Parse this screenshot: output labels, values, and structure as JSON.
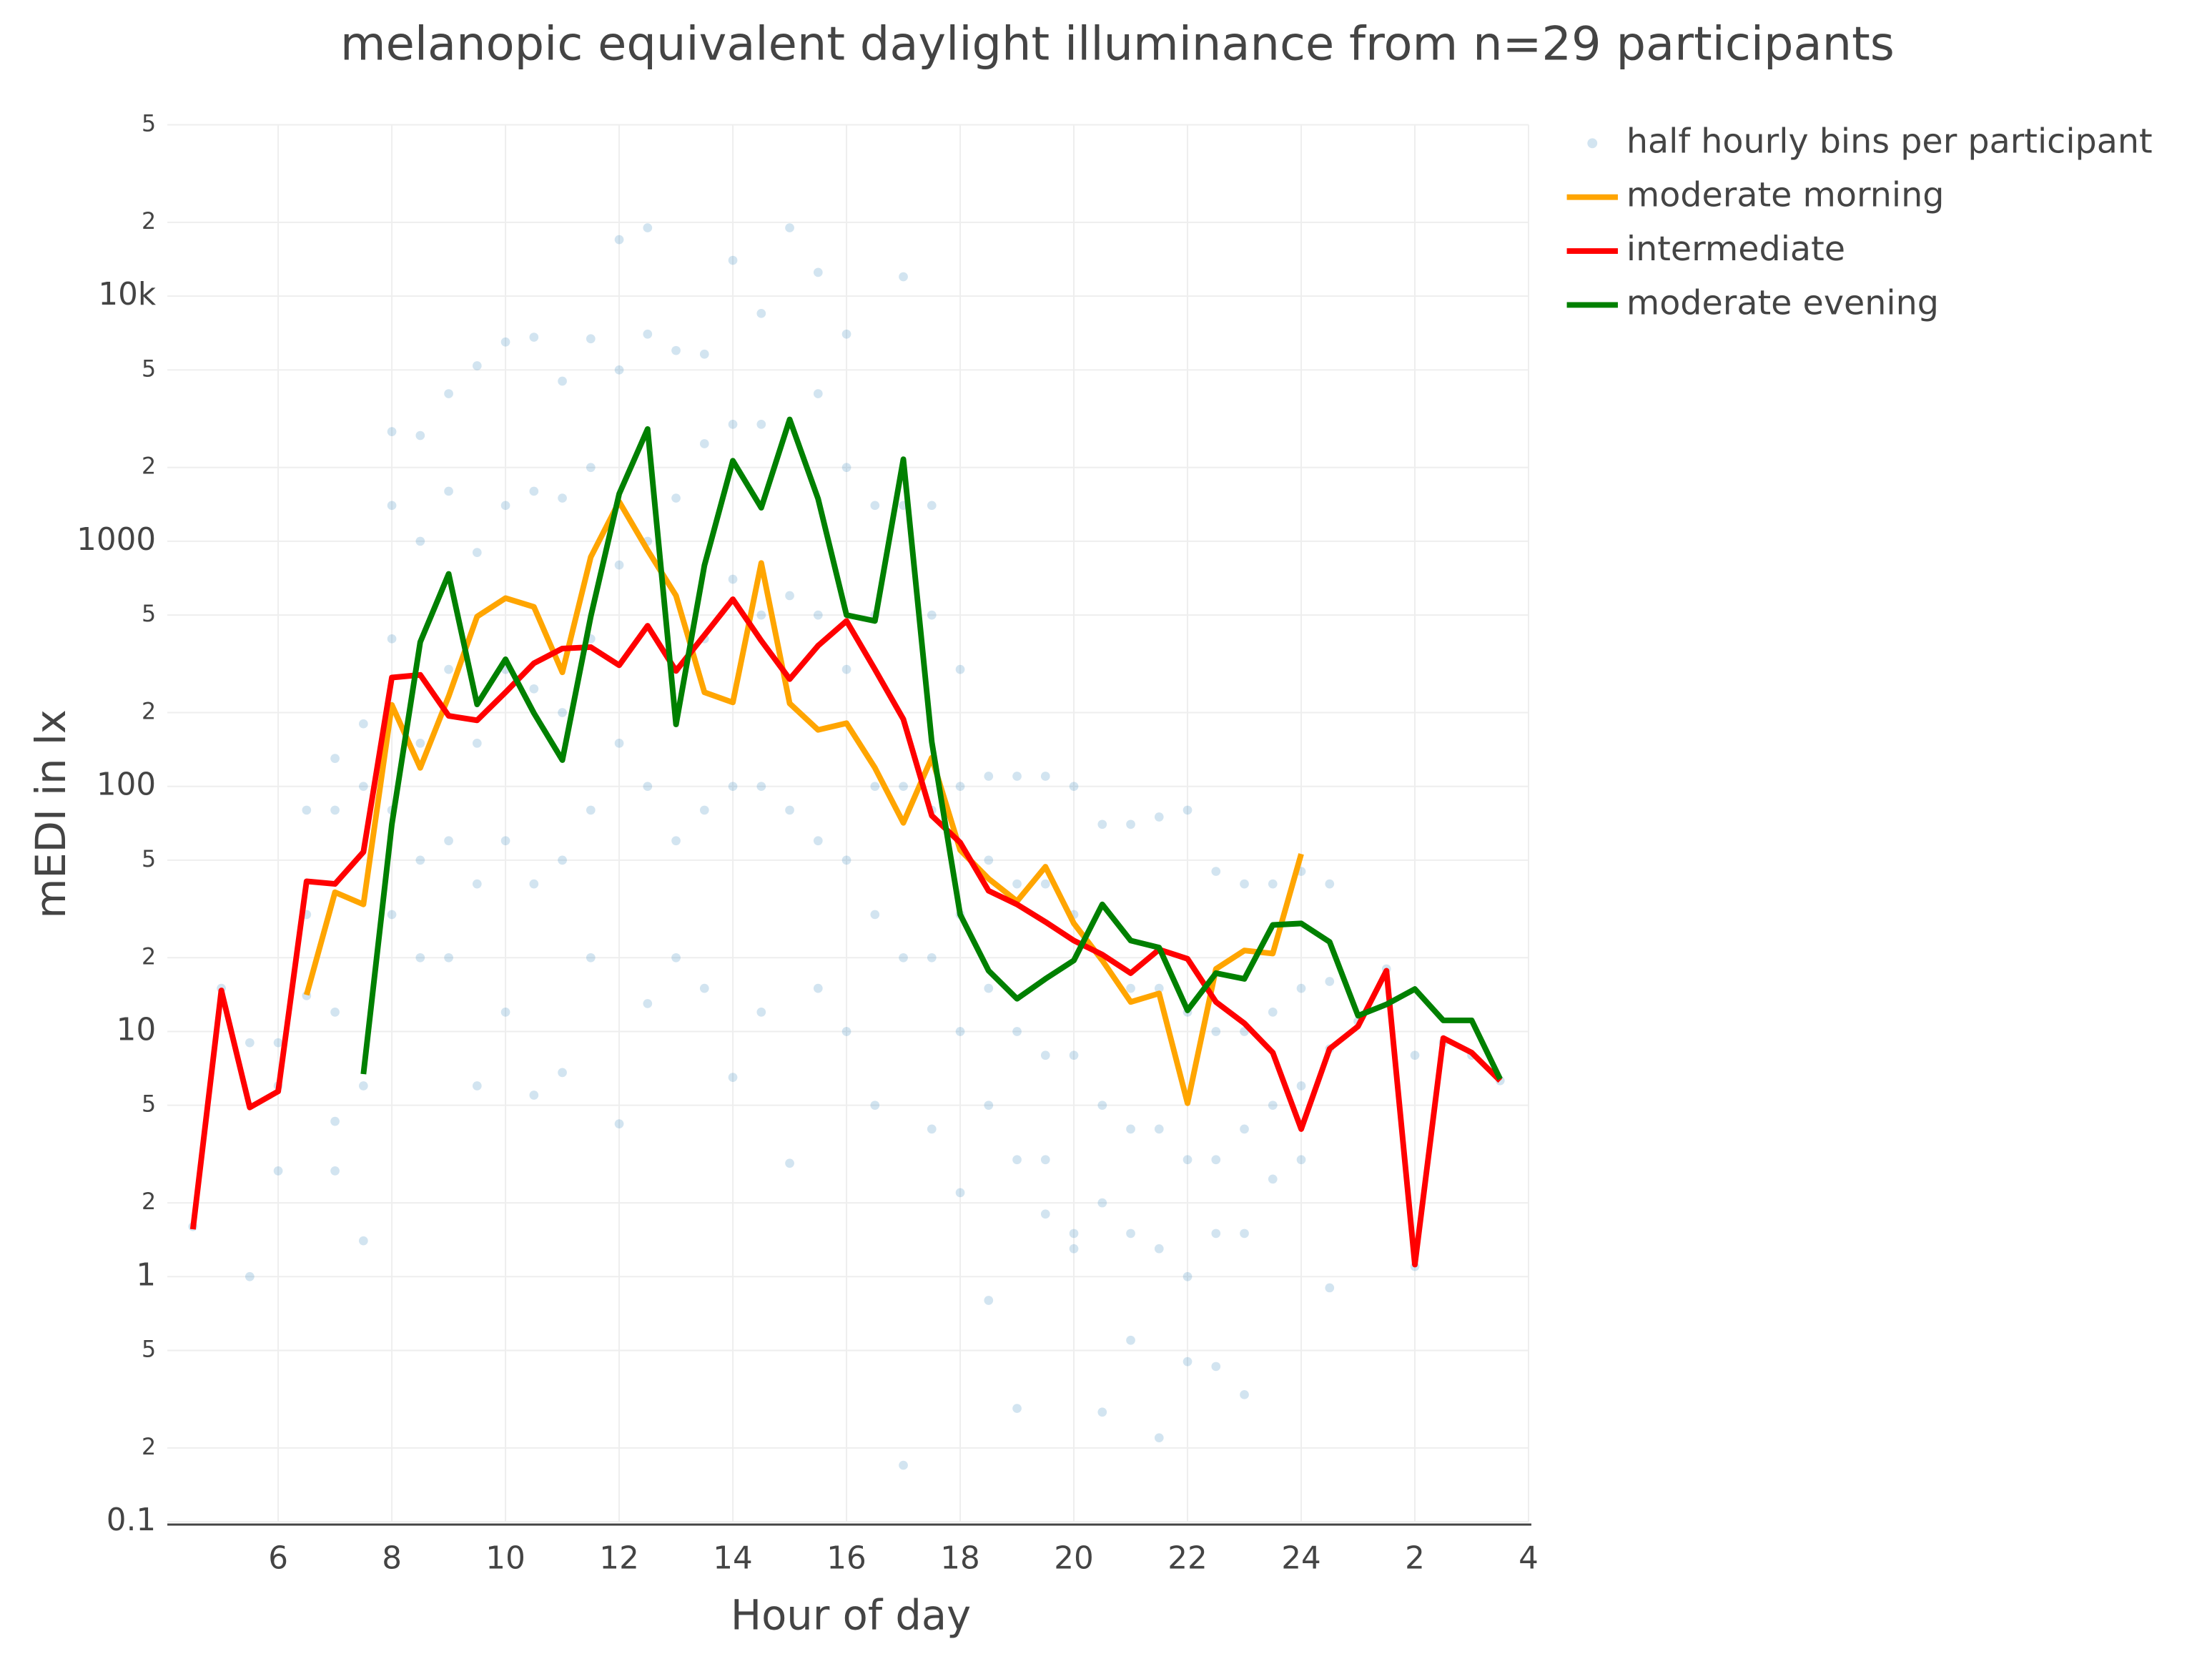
{
  "chart_data": {
    "type": "line",
    "title": "melanopic equivalent daylight illuminance from n=29 participants",
    "x_label": "Hour of day",
    "y_label": "mEDI in lx",
    "log_y": true,
    "grid": true,
    "legend": "top-right",
    "xlim": [
      4.05,
      28
    ],
    "ylim": [
      0.1,
      50000
    ],
    "xticks": [
      6,
      8,
      10,
      12,
      14,
      16,
      18,
      20,
      22,
      24,
      {
        "value": 26,
        "label": "2"
      },
      {
        "value": 28,
        "label": "4"
      }
    ],
    "yticks": [
      0.1,
      {
        "value": 0.2,
        "label": "2"
      },
      {
        "value": 0.5,
        "label": "5"
      },
      1,
      2,
      5,
      10,
      {
        "value": 20,
        "label": "2"
      },
      {
        "value": 50,
        "label": "5"
      },
      100,
      {
        "value": 200,
        "label": "2"
      },
      {
        "value": 500,
        "label": "5"
      },
      1000,
      {
        "value": 2000,
        "label": "2"
      },
      {
        "value": 5000,
        "label": "5"
      },
      {
        "value": 10000,
        "label": "10k"
      },
      {
        "value": 20000,
        "label": "2"
      },
      {
        "value": 50000,
        "label": "5"
      }
    ],
    "series": [
      {
        "name": "half hourly bins per participant",
        "mode": "markers",
        "color": "#1f77b4",
        "x": [
          4.5,
          5,
          5.5,
          5.5,
          6,
          6,
          6,
          6.5,
          6.5,
          6.5,
          7,
          7,
          7,
          7,
          7,
          7.5,
          7.5,
          7.5,
          7.5,
          8,
          8,
          8,
          8,
          8,
          8.5,
          8.5,
          8.5,
          8.5,
          8.5,
          9,
          9,
          9,
          9,
          9,
          9.5,
          9.5,
          9.5,
          9.5,
          9.5,
          10,
          10,
          10,
          10,
          10,
          10.5,
          10.5,
          10.5,
          10.5,
          10.5,
          11,
          11,
          11,
          11,
          11,
          11.5,
          11.5,
          11.5,
          11.5,
          11.5,
          12,
          12,
          12,
          12,
          12,
          12.5,
          12.5,
          12.5,
          12.5,
          12.5,
          13,
          13,
          13,
          13,
          13,
          13.5,
          13.5,
          13.5,
          13.5,
          13.5,
          14,
          14,
          14,
          14,
          14,
          14.5,
          14.5,
          14.5,
          14.5,
          14.5,
          15,
          15,
          15,
          15,
          15,
          15.5,
          15.5,
          15.5,
          15.5,
          15.5,
          16,
          16,
          16,
          16,
          16,
          16.5,
          16.5,
          16.5,
          16.5,
          16.5,
          17,
          17,
          17,
          17,
          17,
          17.5,
          17.5,
          17.5,
          17.5,
          17.5,
          18,
          18,
          18,
          18,
          18,
          18.5,
          18.5,
          18.5,
          18.5,
          18.5,
          19,
          19,
          19,
          19,
          19,
          19.5,
          19.5,
          19.5,
          19.5,
          19.5,
          20,
          20,
          20,
          20,
          20,
          20.5,
          20.5,
          20.5,
          20.5,
          20.5,
          21,
          21,
          21,
          21,
          21,
          21.5,
          21.5,
          21.5,
          21.5,
          21.5,
          22,
          22,
          22,
          22,
          22,
          22.5,
          22.5,
          22.5,
          22.5,
          22.5,
          23,
          23,
          23,
          23,
          23,
          23.5,
          23.5,
          23.5,
          23.5,
          24,
          24,
          24,
          24,
          24.5,
          24.5,
          24.5,
          24.5,
          25,
          25.5,
          26,
          26,
          26.5,
          27,
          27.5
        ],
        "values": [
          1.6,
          15,
          9,
          1,
          9,
          2.7,
          6,
          80,
          14,
          30,
          80,
          4.3,
          12,
          2.7,
          130,
          1.4,
          6,
          100,
          180,
          2800,
          1400,
          80,
          400,
          30,
          2700,
          1000,
          150,
          50,
          20,
          4000,
          1600,
          300,
          60,
          20,
          5200,
          900,
          150,
          40,
          6,
          6500,
          1400,
          300,
          60,
          12,
          6800,
          1600,
          250,
          40,
          5.5,
          4500,
          1500,
          200,
          50,
          6.8,
          6700,
          2000,
          400,
          80,
          20,
          17000,
          5000,
          800,
          150,
          4.2,
          19000,
          7000,
          1000,
          100,
          13,
          6000,
          1500,
          300,
          60,
          20,
          5800,
          2500,
          400,
          80,
          15,
          14000,
          3000,
          700,
          100,
          6.5,
          8500,
          3000,
          500,
          100,
          12,
          19000,
          3000,
          600,
          80,
          2.9,
          12500,
          4000,
          500,
          60,
          15,
          7000,
          2000,
          300,
          50,
          10,
          1400,
          500,
          100,
          30,
          5,
          12000,
          1400,
          100,
          20,
          0.17,
          1400,
          500,
          80,
          20,
          4,
          300,
          100,
          30,
          10,
          2.2,
          110,
          50,
          15,
          5,
          0.8,
          110,
          40,
          10,
          3,
          0.29,
          110,
          40,
          8,
          3,
          1.8,
          100,
          30,
          8,
          1.5,
          1.3,
          70,
          20,
          5,
          2,
          0.28,
          70,
          15,
          4,
          1.5,
          0.55,
          75,
          15,
          4,
          1.3,
          0.22,
          80,
          12,
          3,
          1,
          0.45,
          45,
          10,
          3,
          1.5,
          0.43,
          40,
          10,
          4,
          1.5,
          0.33,
          40,
          12,
          5,
          2.5,
          45,
          15,
          6,
          3,
          40,
          16,
          8.5,
          0.9,
          11,
          18,
          8,
          1.1,
          9,
          8,
          6.3
        ]
      },
      {
        "name": "moderate morning",
        "mode": "lines",
        "color": "#ffa500",
        "x": [
          6.5,
          7,
          7.5,
          8,
          8.5,
          9,
          9.5,
          10,
          10.5,
          11,
          11.5,
          12,
          12.5,
          13,
          13.5,
          14,
          14.5,
          15,
          15.5,
          16,
          16.5,
          17,
          17.5,
          18,
          18.5,
          19,
          19.5,
          20,
          20.5,
          21,
          21.5,
          22,
          22.5,
          23,
          23.5,
          24
        ],
        "values": [
          14.1,
          37,
          33,
          215,
          119,
          233,
          493,
          586,
          540,
          292,
          862,
          1450,
          920,
          600,
          242,
          220,
          815,
          218,
          170,
          181,
          119,
          71,
          131,
          55,
          42,
          34,
          47,
          27.6,
          19.5,
          13.2,
          14.3,
          5.1,
          18,
          21.4,
          20.8,
          53
        ]
      },
      {
        "name": "intermediate",
        "mode": "lines",
        "color": "#ff0000",
        "x": [
          4.5,
          5,
          5.5,
          6,
          6.5,
          7,
          7.5,
          8,
          8.5,
          9,
          9.5,
          10,
          10.5,
          11,
          11.5,
          12,
          12.5,
          13,
          13.5,
          14,
          14.5,
          15,
          15.5,
          16,
          16.5,
          17,
          17.5,
          18,
          18.5,
          19,
          19.5,
          20,
          20.5,
          21,
          21.5,
          22,
          22.5,
          23,
          23.5,
          24,
          24.5,
          25,
          25.5,
          26,
          26.5,
          27,
          27.5
        ],
        "values": [
          1.56,
          14.7,
          4.9,
          5.7,
          41,
          40,
          54,
          278,
          285,
          194,
          186,
          242,
          318,
          365,
          370,
          312,
          452,
          296,
          414,
          580,
          393,
          274,
          375,
          473,
          300,
          188,
          76,
          59,
          37.5,
          33,
          28,
          23.5,
          20.6,
          17.3,
          21.6,
          19.8,
          13.2,
          10.8,
          8.2,
          4,
          8.5,
          10.5,
          17.7,
          1.12,
          9.4,
          8.2,
          6.3
        ]
      },
      {
        "name": "moderate evening",
        "mode": "lines",
        "color": "#008000",
        "x": [
          7.5,
          8,
          8.5,
          9,
          9.5,
          10,
          10.5,
          11,
          11.5,
          12,
          12.5,
          13,
          13.5,
          14,
          14.5,
          15,
          15.5,
          16,
          16.5,
          17,
          17.5,
          18,
          18.5,
          19,
          19.5,
          20,
          20.5,
          21,
          21.5,
          22,
          22.5,
          23,
          23.5,
          24,
          24.5,
          25,
          25.5,
          26,
          26.5,
          27,
          27.5
        ],
        "values": [
          6.7,
          70,
          388,
          736,
          216,
          330,
          199,
          128,
          493,
          1560,
          2870,
          179,
          797,
          2130,
          1370,
          3140,
          1490,
          500,
          473,
          2160,
          152,
          30,
          17.7,
          13.6,
          16.4,
          19.5,
          33,
          23.5,
          22,
          12.2,
          17.3,
          16.4,
          27.2,
          27.6,
          23.2,
          11.6,
          12.9,
          14.9,
          11.1,
          11.1,
          6.4
        ]
      }
    ]
  }
}
